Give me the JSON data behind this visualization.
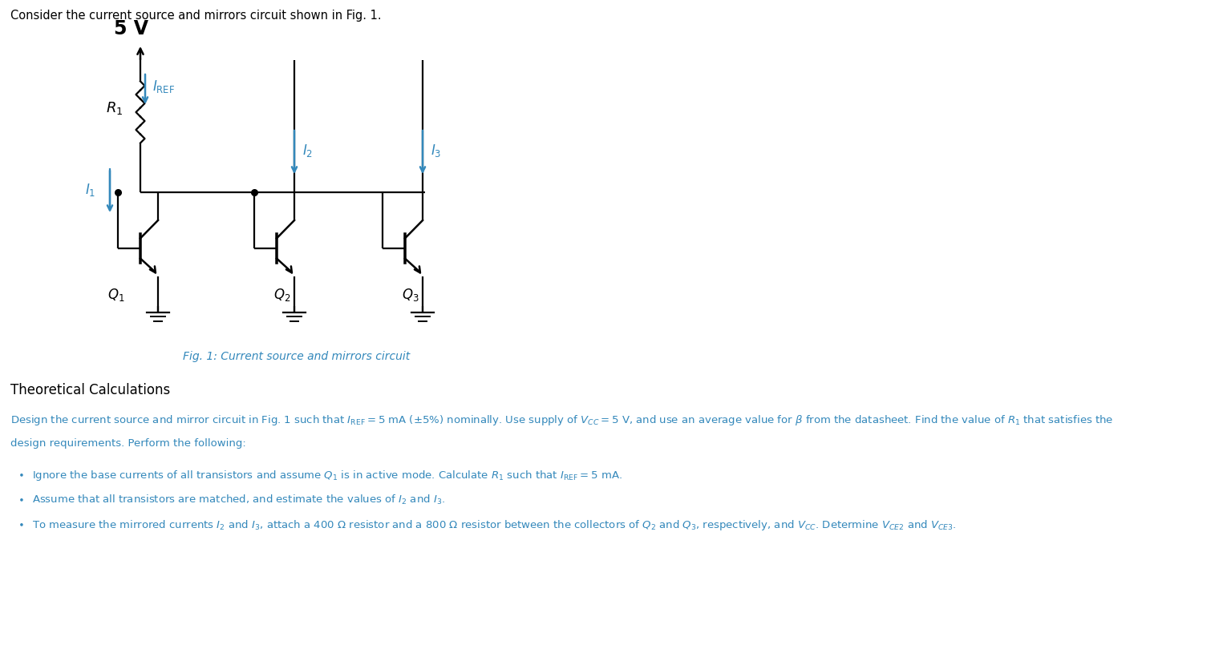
{
  "title_text": "Consider the current source and mirrors circuit shown in Fig. 1.",
  "fig_caption": "Fig. 1: Current source and mirrors circuit",
  "section_title": "Theoretical Calculations",
  "bg_color": "#ffffff",
  "circuit_color": "#000000",
  "blue_color": "#3388bb",
  "text_color": "#000000",
  "vcc_label": "5 V",
  "q1_label": "$Q_1$",
  "q2_label": "$Q_2$",
  "q3_label": "$Q_3$",
  "r1_label": "$R_1$",
  "iref_label": "$I_{\\mathrm{REF}}$",
  "i1_label": "$I_1$",
  "i2_label": "$I_2$",
  "i3_label": "$I_3$"
}
